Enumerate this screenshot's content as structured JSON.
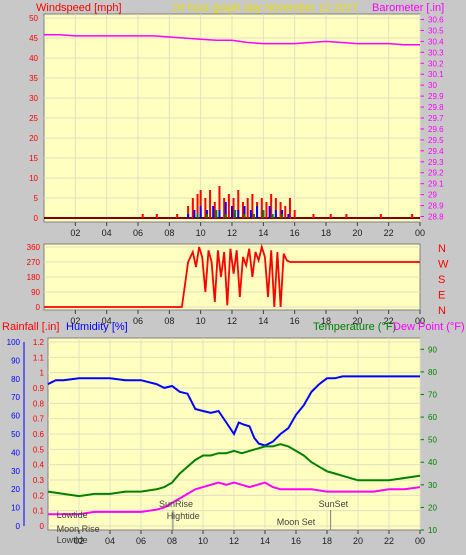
{
  "header": {
    "windspeed_label": "Windspeed [mph]",
    "graph_title": "24 hour graph day   November 12 2017",
    "barometer_label": "Barometer [.in]"
  },
  "bottom_header": {
    "rainfall_label": "Rainfall [.in]",
    "humidity_label": "Humidity [%]",
    "temperature_label": "Temperature (°F)",
    "dewpoint_label": "Dew Point (°F)"
  },
  "colors": {
    "background": "#c8c8c8",
    "plot_bg": "#ffffc0",
    "grid": "#e0e0c0",
    "red": "#ff0000",
    "magenta": "#ff00ff",
    "blue": "#0000ff",
    "green": "#008000",
    "yellow_title": "#e8e000",
    "gray_text": "#404040",
    "teal": "#008080"
  },
  "chart_data": [
    {
      "type": "line",
      "name": "wind-and-barometer",
      "x_ticks": [
        "02",
        "04",
        "06",
        "08",
        "10",
        "12",
        "14",
        "16",
        "18",
        "20",
        "22",
        "00"
      ],
      "xlim": [
        0,
        24
      ],
      "wind_ticks": [
        "0",
        "5",
        "10",
        "15",
        "20",
        "25",
        "30",
        "35",
        "40",
        "45",
        "50"
      ],
      "wind_ylim": [
        0,
        50
      ],
      "baro_ticks": [
        "28.8",
        "28.9",
        "29",
        "29.1",
        "29.2",
        "29.3",
        "29.4",
        "29.5",
        "29.6",
        "29.7",
        "29.8",
        "29.9",
        "30",
        "30.1",
        "30.2",
        "30.3",
        "30.4",
        "30.5",
        "30.6"
      ],
      "baro_ylim": [
        28.75,
        30.65
      ],
      "series": [
        {
          "name": "Barometer",
          "color": "#ff00ff",
          "x": [
            0,
            1,
            2,
            3,
            4,
            5,
            6,
            7,
            8,
            9,
            10,
            11,
            12,
            13,
            14,
            15,
            16,
            17,
            18,
            19,
            20,
            21,
            22,
            23,
            24
          ],
          "values": [
            30.46,
            30.46,
            30.45,
            30.45,
            30.45,
            30.45,
            30.45,
            30.45,
            30.44,
            30.43,
            30.42,
            30.41,
            30.41,
            30.39,
            30.38,
            30.38,
            30.38,
            30.39,
            30.4,
            30.39,
            30.38,
            30.38,
            30.38,
            30.37,
            30.37
          ]
        },
        {
          "name": "Wind gust",
          "color": "#ff0000",
          "x": [
            0,
            6.3,
            7.2,
            8.5,
            9.2,
            9.5,
            9.8,
            10.0,
            10.3,
            10.6,
            10.9,
            11.2,
            11.5,
            11.8,
            12.1,
            12.4,
            12.7,
            13.0,
            13.3,
            13.6,
            13.9,
            14.2,
            14.5,
            14.8,
            15.1,
            15.4,
            15.7,
            16.0,
            16.5,
            17.2,
            18.3,
            19.3,
            20.2,
            21.5,
            22.5,
            23.5,
            24
          ],
          "values": [
            0,
            1,
            1,
            1,
            3,
            5,
            6,
            7,
            5,
            7,
            4,
            8,
            5,
            6,
            5,
            7,
            4,
            5,
            6,
            4,
            5,
            4,
            6,
            5,
            4,
            3,
            5,
            2,
            0,
            1,
            1,
            1,
            0,
            1,
            0,
            1,
            0
          ]
        },
        {
          "name": "Wind average",
          "color": "#0000ff",
          "x": [
            9.2,
            9.6,
            10.0,
            10.4,
            10.8,
            11.2,
            11.6,
            12.0,
            12.4,
            12.8,
            13.2,
            13.6,
            14.0,
            14.4,
            14.8,
            15.2,
            15.6,
            16.0
          ],
          "values": [
            1,
            2,
            3,
            2,
            3,
            2,
            4,
            3,
            2,
            3,
            2,
            3,
            2,
            3,
            2,
            2,
            1,
            0
          ]
        },
        {
          "name": "Wind speed",
          "color": "#008000",
          "x": [
            9.2,
            9.8,
            10.4,
            11.0,
            11.6,
            12.2,
            12.8,
            13.4,
            14.0,
            14.6,
            15.2,
            15.8,
            16.0
          ],
          "values": [
            0,
            1,
            1,
            2,
            1,
            2,
            1,
            1,
            2,
            1,
            1,
            0,
            0
          ]
        }
      ]
    },
    {
      "type": "line",
      "name": "wind-direction",
      "x_ticks": [
        "02",
        "04",
        "06",
        "08",
        "10",
        "12",
        "14",
        "16",
        "18",
        "20",
        "22",
        "00"
      ],
      "xlim": [
        0,
        24
      ],
      "y_ticks": [
        "360",
        "270",
        "180",
        "90",
        "0"
      ],
      "ylim": [
        0,
        360
      ],
      "compass": [
        "N",
        "W",
        "S",
        "E",
        "N"
      ],
      "series": [
        {
          "name": "Wind direction",
          "color": "#ff0000",
          "x": [
            0,
            8.8,
            9.2,
            9.5,
            9.7,
            9.9,
            10.1,
            10.3,
            10.5,
            10.7,
            10.9,
            11.1,
            11.3,
            11.5,
            11.7,
            11.9,
            12.1,
            12.3,
            12.5,
            12.7,
            12.9,
            13.1,
            13.3,
            13.5,
            13.7,
            13.9,
            14.1,
            14.3,
            14.5,
            14.7,
            14.9,
            15.1,
            15.3,
            15.5,
            15.7,
            16.0,
            24
          ],
          "values": [
            0,
            0,
            270,
            330,
            240,
            360,
            300,
            90,
            340,
            270,
            30,
            340,
            180,
            330,
            10,
            350,
            200,
            340,
            60,
            300,
            250,
            350,
            180,
            330,
            280,
            360,
            300,
            60,
            340,
            0,
            330,
            0,
            320,
            280,
            270,
            270,
            270
          ]
        }
      ]
    },
    {
      "type": "line",
      "name": "rain-humidity-temperature",
      "x_ticks": [
        "02",
        "04",
        "06",
        "08",
        "10",
        "12",
        "14",
        "16",
        "18",
        "20",
        "22",
        "00"
      ],
      "xlim": [
        0,
        24
      ],
      "rain_ticks": [
        "0",
        "0.1",
        "0.2",
        "0.3",
        "0.4",
        "0.5",
        "0.6",
        "0.7",
        "0.8",
        "0.9",
        "1",
        "1.1",
        "1.2"
      ],
      "rain_ylim": [
        0,
        1.2
      ],
      "humidity_ticks": [
        "0",
        "10",
        "20",
        "30",
        "40",
        "50",
        "60",
        "70",
        "80",
        "90",
        "100"
      ],
      "humidity_ylim": [
        0,
        100
      ],
      "temp_ticks": [
        "10",
        "20",
        "30",
        "40",
        "50",
        "60",
        "70",
        "80",
        "90"
      ],
      "temp_ylim": [
        10,
        95
      ],
      "series": [
        {
          "name": "Humidity",
          "color": "#0000ff",
          "x": [
            0,
            0.5,
            1,
            2,
            3,
            4,
            5,
            6,
            7,
            7.5,
            8,
            8.5,
            9,
            9.5,
            10,
            10.5,
            11,
            11.5,
            12,
            12.3,
            12.6,
            13,
            13.3,
            13.6,
            14,
            14.5,
            15,
            15.5,
            16,
            16.5,
            17,
            17.5,
            18,
            18.5,
            19,
            19.5,
            20,
            21,
            22,
            23,
            24
          ],
          "values": [
            76,
            78,
            78,
            79,
            79,
            79,
            78,
            78,
            76,
            74,
            75,
            72,
            71,
            63,
            62,
            61,
            62,
            56,
            50,
            56,
            55,
            54,
            48,
            45,
            44,
            46,
            50,
            53,
            60,
            65,
            72,
            76,
            79,
            79,
            80,
            80,
            80,
            80,
            80,
            80,
            80
          ]
        },
        {
          "name": "Temperature",
          "color": "#008000",
          "x": [
            0,
            1,
            2,
            3,
            4,
            5,
            6,
            7,
            7.5,
            8,
            8.5,
            9,
            9.5,
            10,
            10.5,
            11,
            11.5,
            12,
            12.5,
            13,
            13.5,
            14,
            14.5,
            15,
            15.5,
            16,
            16.5,
            17,
            17.5,
            18,
            18.5,
            19,
            20,
            21,
            22,
            23,
            24
          ],
          "values": [
            27,
            26,
            25,
            26,
            26,
            27,
            27,
            28,
            29,
            31,
            35,
            38,
            41,
            43,
            43,
            44,
            44,
            45,
            44,
            45,
            46,
            47,
            47,
            48,
            47,
            45,
            43,
            40,
            38,
            36,
            35,
            34,
            32,
            32,
            32,
            33,
            34
          ]
        },
        {
          "name": "Dew Point",
          "color": "#ff00ff",
          "x": [
            0,
            1,
            2,
            3,
            4,
            5,
            6,
            7,
            7.5,
            8,
            8.5,
            9,
            9.5,
            10,
            10.5,
            11,
            11.5,
            12,
            12.5,
            13,
            13.5,
            14,
            14.5,
            15,
            15.5,
            16,
            16.5,
            17,
            18,
            19,
            20,
            21,
            22,
            23,
            24
          ],
          "values": [
            17,
            17,
            17,
            18,
            18,
            18,
            18,
            19,
            20,
            22,
            24,
            26,
            28,
            29,
            30,
            31,
            30,
            31,
            30,
            29,
            30,
            31,
            29,
            28,
            28,
            28,
            28,
            28,
            27,
            27,
            27,
            27,
            28,
            28,
            29
          ]
        }
      ],
      "annotations": [
        {
          "label": "Lowtide",
          "x": 0.3
        },
        {
          "label": "Moon Rise",
          "x": 0.3
        },
        {
          "label": "Lowtide",
          "x": 0.3
        },
        {
          "label": "SunRise",
          "x": 6.9
        },
        {
          "label": "Hightide",
          "x": 7.4
        },
        {
          "label": "Moon Set",
          "x": 14.5
        },
        {
          "label": "SunSet",
          "x": 17.2
        }
      ]
    }
  ]
}
